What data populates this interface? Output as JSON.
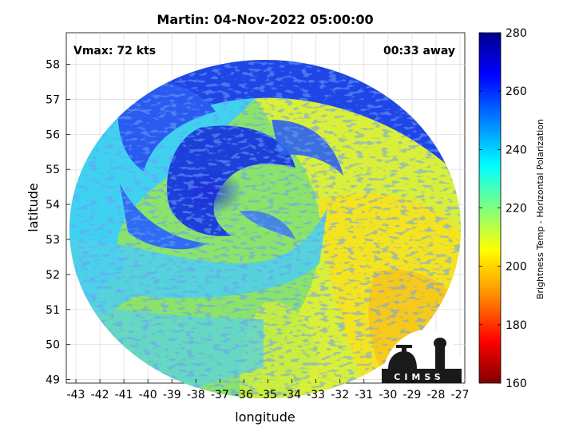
{
  "title": "Martin: 04-Nov-2022 05:00:00",
  "overlay": {
    "vmax": "Vmax: 72 kts",
    "away": "00:33 away"
  },
  "axes": {
    "xlabel": "longitude",
    "ylabel": "latitude",
    "xticks": [
      "-43",
      "-42",
      "-41",
      "-40",
      "-39",
      "-38",
      "-37",
      "-36",
      "-35",
      "-34",
      "-33",
      "-32",
      "-31",
      "-30",
      "-29",
      "-28",
      "-27"
    ],
    "yticks": [
      "49",
      "50",
      "51",
      "52",
      "53",
      "54",
      "55",
      "56",
      "57",
      "58"
    ],
    "xlim": [
      -43.4,
      -26.8
    ],
    "ylim": [
      48.9,
      58.9
    ]
  },
  "colorbar": {
    "label": "Brightness Temp - Horizontal Polarization",
    "ticks": [
      "280",
      "260",
      "240",
      "220",
      "200",
      "180",
      "160"
    ],
    "range": [
      160,
      280
    ],
    "colors": [
      "#7f0000",
      "#ff0000",
      "#ff8c00",
      "#ffff00",
      "#80ff80",
      "#00ffff",
      "#0080ff",
      "#0000ff",
      "#00008f"
    ]
  },
  "logo": {
    "text": "CIMSS"
  }
}
